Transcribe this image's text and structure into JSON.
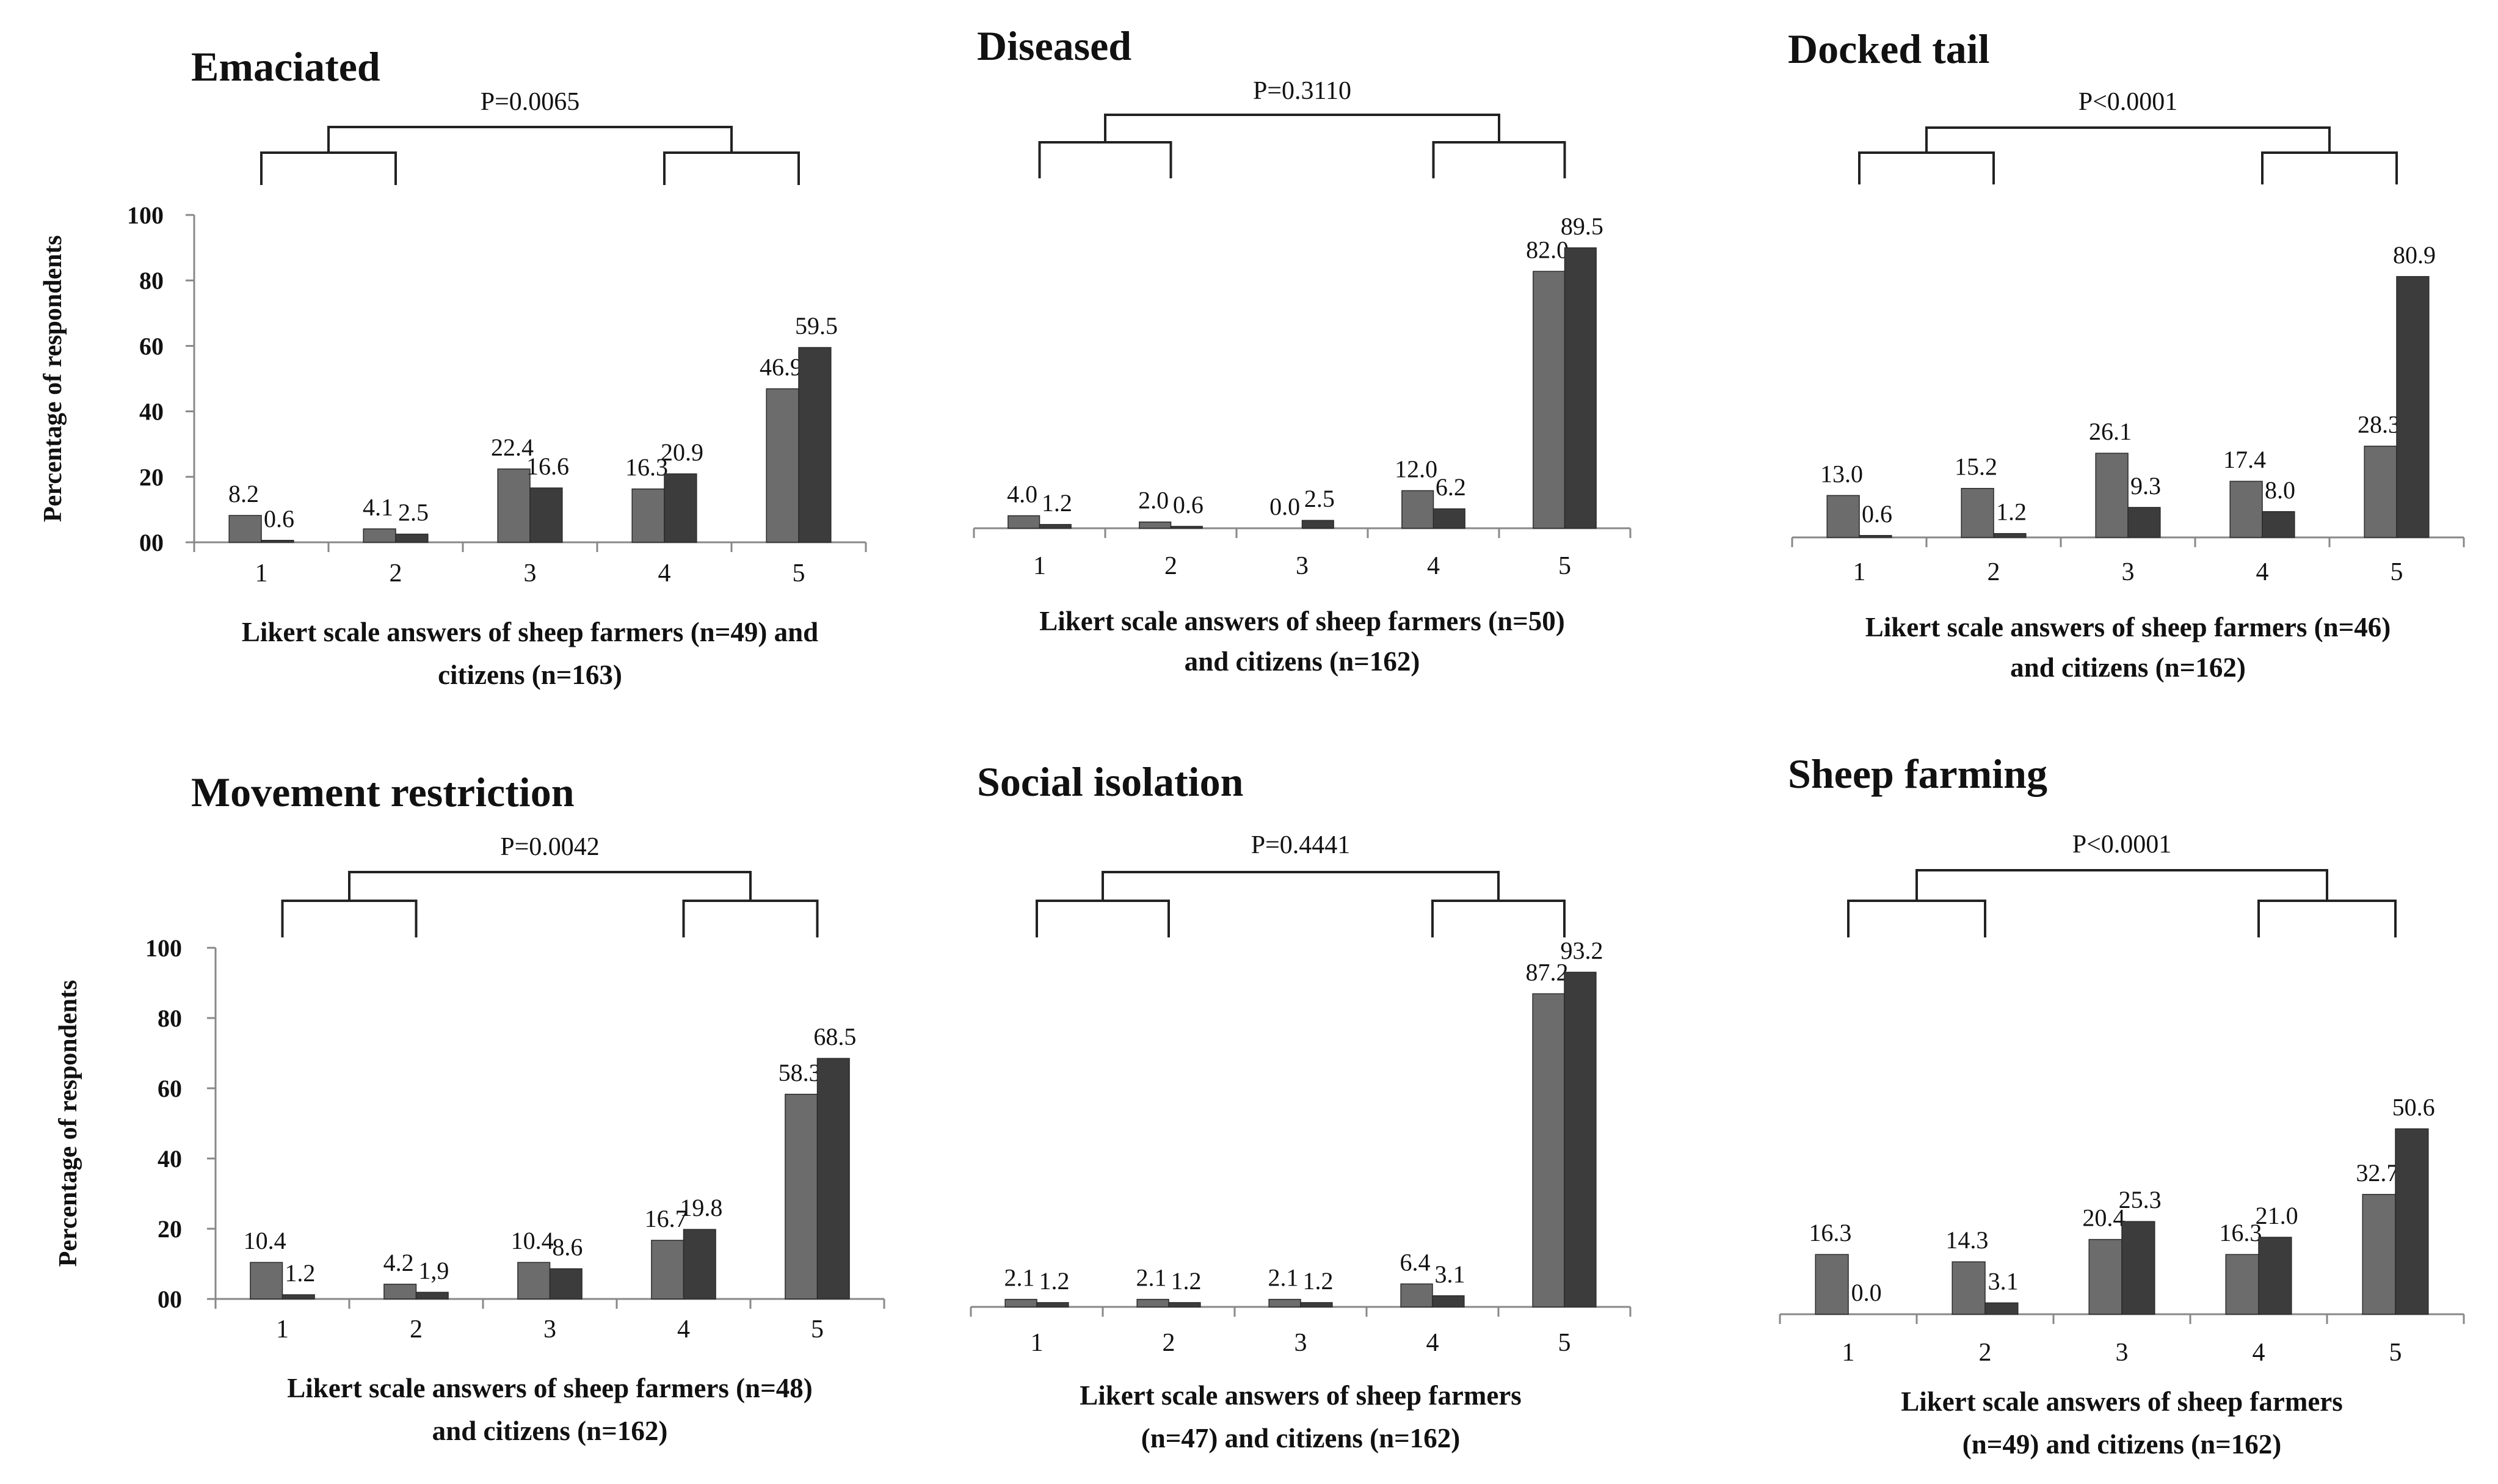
{
  "colors": {
    "farmers_bar": "#6c6c6c",
    "citizens_bar": "#3c3c3c",
    "axis": "#888888",
    "bracket": "#222222",
    "background": "#ffffff"
  },
  "chart_data": [
    {
      "type": "bar",
      "title": "Emaciated",
      "p_value": "P=0.0065",
      "ylabel": "Percentage of respondents",
      "xlabel_lines": [
        "Likert scale answers of sheep farmers (n=49) and",
        "citizens (n=163)"
      ],
      "categories": [
        "1",
        "2",
        "3",
        "4",
        "5"
      ],
      "yticks": [
        "00",
        "20",
        "40",
        "60",
        "80",
        "100"
      ],
      "ylim": [
        0,
        100
      ],
      "series": [
        {
          "name": "Sheep farmers",
          "values": [
            8.2,
            4.1,
            22.4,
            16.3,
            46.9
          ],
          "labels": [
            "8.2",
            "4.1",
            "22.4",
            "16.3",
            "46.9"
          ]
        },
        {
          "name": "Citizens",
          "values": [
            0.6,
            2.5,
            16.6,
            20.9,
            59.5
          ],
          "labels": [
            "0.6",
            "2.5",
            "16.6",
            "20.9",
            "59.5"
          ]
        }
      ]
    },
    {
      "type": "bar",
      "title": "Diseased",
      "p_value": "P=0.3110",
      "ylabel": "",
      "xlabel_lines": [
        "Likert scale answers of sheep farmers (n=50)",
        "and citizens (n=162)"
      ],
      "categories": [
        "1",
        "2",
        "3",
        "4",
        "5"
      ],
      "yticks": [],
      "ylim": [
        0,
        100
      ],
      "series": [
        {
          "name": "Sheep farmers",
          "values": [
            4.0,
            2.0,
            0.0,
            12.0,
            82.0
          ],
          "labels": [
            "4.0",
            "2.0",
            "0.0",
            "12.0",
            "82.0"
          ]
        },
        {
          "name": "Citizens",
          "values": [
            1.2,
            0.6,
            2.5,
            6.2,
            89.5
          ],
          "labels": [
            "1.2",
            "0.6",
            "2.5",
            "6.2",
            "89.5"
          ]
        }
      ]
    },
    {
      "type": "bar",
      "title": "Docked tail",
      "p_value": "P<0.0001",
      "ylabel": "",
      "xlabel_lines": [
        "Likert scale answers of sheep farmers (n=46)",
        "and citizens (n=162)"
      ],
      "categories": [
        "1",
        "2",
        "3",
        "4",
        "5"
      ],
      "yticks": [],
      "ylim": [
        0,
        100
      ],
      "series": [
        {
          "name": "Sheep farmers",
          "values": [
            13.0,
            15.2,
            26.1,
            17.4,
            28.3
          ],
          "labels": [
            "13.0",
            "15.2",
            "26.1",
            "17.4",
            "28.3"
          ]
        },
        {
          "name": "Citizens",
          "values": [
            0.6,
            1.2,
            9.3,
            8.0,
            80.9
          ],
          "labels": [
            "0.6",
            "1.2",
            "9.3",
            "8.0",
            "80.9"
          ]
        }
      ]
    },
    {
      "type": "bar",
      "title": "Movement restriction",
      "p_value": "P=0.0042",
      "ylabel": "Percentage of respondents",
      "xlabel_lines": [
        "Likert scale answers of sheep farmers (n=48)",
        "and citizens (n=162)"
      ],
      "categories": [
        "1",
        "2",
        "3",
        "4",
        "5"
      ],
      "yticks": [
        "00",
        "20",
        "40",
        "60",
        "80",
        "100"
      ],
      "ylim": [
        0,
        100
      ],
      "series": [
        {
          "name": "Sheep farmers",
          "values": [
            10.4,
            4.2,
            10.4,
            16.7,
            58.3
          ],
          "labels": [
            "10.4",
            "4.2",
            "10.4",
            "16.7",
            "58.3"
          ]
        },
        {
          "name": "Citizens",
          "values": [
            1.2,
            1.9,
            8.6,
            19.8,
            68.5
          ],
          "labels": [
            "1.2",
            "1,9",
            "8.6",
            "19.8",
            "68.5"
          ]
        }
      ]
    },
    {
      "type": "bar",
      "title": "Social isolation",
      "p_value": "P=0.4441",
      "ylabel": "",
      "xlabel_lines": [
        "Likert scale answers of sheep farmers",
        "(n=47) and citizens (n=162)"
      ],
      "categories": [
        "1",
        "2",
        "3",
        "4",
        "5"
      ],
      "yticks": [],
      "ylim": [
        0,
        100
      ],
      "series": [
        {
          "name": "Sheep farmers",
          "values": [
            2.1,
            2.1,
            2.1,
            6.4,
            87.2
          ],
          "labels": [
            "2.1",
            "2.1",
            "2.1",
            "6.4",
            "87.2"
          ]
        },
        {
          "name": "Citizens",
          "values": [
            1.2,
            1.2,
            1.2,
            3.1,
            93.2
          ],
          "labels": [
            "1.2",
            "1.2",
            "1.2",
            "3.1",
            "93.2"
          ]
        }
      ]
    },
    {
      "type": "bar",
      "title": "Sheep farming",
      "p_value": "P<0.0001",
      "ylabel": "",
      "xlabel_lines": [
        "Likert scale answers of sheep farmers",
        "(n=49) and citizens (n=162)"
      ],
      "categories": [
        "1",
        "2",
        "3",
        "4",
        "5"
      ],
      "yticks": [],
      "ylim": [
        0,
        100
      ],
      "series": [
        {
          "name": "Sheep farmers",
          "values": [
            16.3,
            14.3,
            20.4,
            16.3,
            32.7
          ],
          "labels": [
            "16.3",
            "14.3",
            "20.4",
            "16.3",
            "32.7"
          ]
        },
        {
          "name": "Citizens",
          "values": [
            0.0,
            3.1,
            25.3,
            21.0,
            50.6
          ],
          "labels": [
            "0.0",
            "3.1",
            "25.3",
            "21.0",
            "50.6"
          ]
        }
      ]
    }
  ]
}
